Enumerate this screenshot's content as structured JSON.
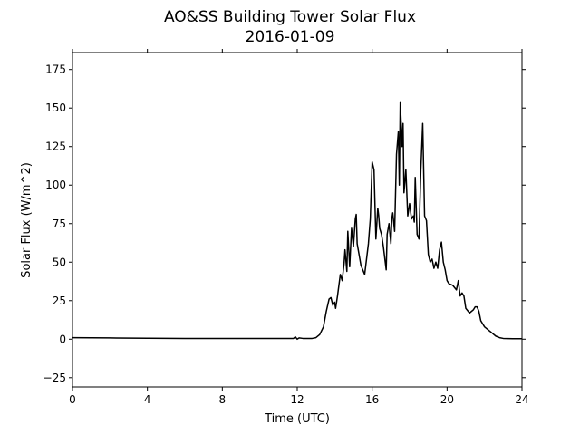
{
  "chart_data": {
    "type": "line",
    "title": "AO&SS Building Tower Solar Flux",
    "subtitle": "2016-01-09",
    "xlabel": "Time (UTC)",
    "ylabel": "Solar Flux (W/m^2)",
    "xlim": [
      0,
      24
    ],
    "ylim": [
      -31,
      186
    ],
    "xticks": [
      0,
      4,
      8,
      12,
      16,
      20,
      24
    ],
    "yticks": [
      -25,
      0,
      25,
      50,
      75,
      100,
      125,
      150,
      175
    ],
    "grid": false,
    "legend": false,
    "line_color": "#000000",
    "series": [
      {
        "x": [
          0,
          2,
          4,
          6,
          8,
          10,
          11.8,
          11.9,
          12.0,
          12.1,
          12.3,
          12.8,
          13.0,
          13.2,
          13.4,
          13.55,
          13.7,
          13.8,
          13.9,
          14.0,
          14.05,
          14.15,
          14.3,
          14.4,
          14.5,
          14.55,
          14.65,
          14.7,
          14.8,
          14.9,
          15.0,
          15.1,
          15.15,
          15.2,
          15.3,
          15.4,
          15.5,
          15.6,
          15.7,
          15.8,
          15.9,
          16.0,
          16.1,
          16.2,
          16.3,
          16.35,
          16.4,
          16.5,
          16.6,
          16.7,
          16.75,
          16.8,
          16.9,
          17.0,
          17.05,
          17.1,
          17.2,
          17.3,
          17.4,
          17.45,
          17.5,
          17.6,
          17.65,
          17.7,
          17.8,
          17.9,
          18.0,
          18.1,
          18.2,
          18.25,
          18.3,
          18.4,
          18.5,
          18.6,
          18.7,
          18.8,
          18.9,
          19.0,
          19.1,
          19.2,
          19.3,
          19.4,
          19.5,
          19.6,
          19.7,
          19.8,
          19.9,
          20.0,
          20.1,
          20.3,
          20.5,
          20.6,
          20.7,
          20.8,
          20.9,
          21.0,
          21.2,
          21.4,
          21.5,
          21.6,
          21.7,
          21.8,
          22.0,
          22.2,
          22.4,
          22.6,
          22.8,
          23.0,
          23.5,
          24.0
        ],
        "values": [
          1,
          0.8,
          0.6,
          0.5,
          0.5,
          0.5,
          0.5,
          1.5,
          0,
          0.8,
          0.5,
          0.5,
          1,
          3,
          8,
          18,
          26,
          27,
          22,
          24,
          20,
          28,
          42,
          38,
          49,
          58,
          44,
          70,
          47,
          72,
          60,
          78,
          81,
          62,
          55,
          48,
          45,
          42,
          52,
          62,
          78,
          115,
          110,
          65,
          85,
          80,
          72,
          68,
          60,
          50,
          45,
          68,
          75,
          62,
          78,
          82,
          70,
          120,
          135,
          100,
          154,
          125,
          140,
          95,
          110,
          80,
          88,
          78,
          80,
          76,
          105,
          68,
          65,
          110,
          140,
          80,
          77,
          55,
          50,
          52,
          46,
          50,
          46,
          58,
          63,
          50,
          45,
          38,
          36,
          35,
          32,
          38,
          28,
          30,
          28,
          20,
          17,
          19,
          21,
          21,
          18,
          12,
          8,
          6,
          4,
          2,
          1,
          0.5,
          0.3,
          0.3
        ]
      }
    ]
  }
}
